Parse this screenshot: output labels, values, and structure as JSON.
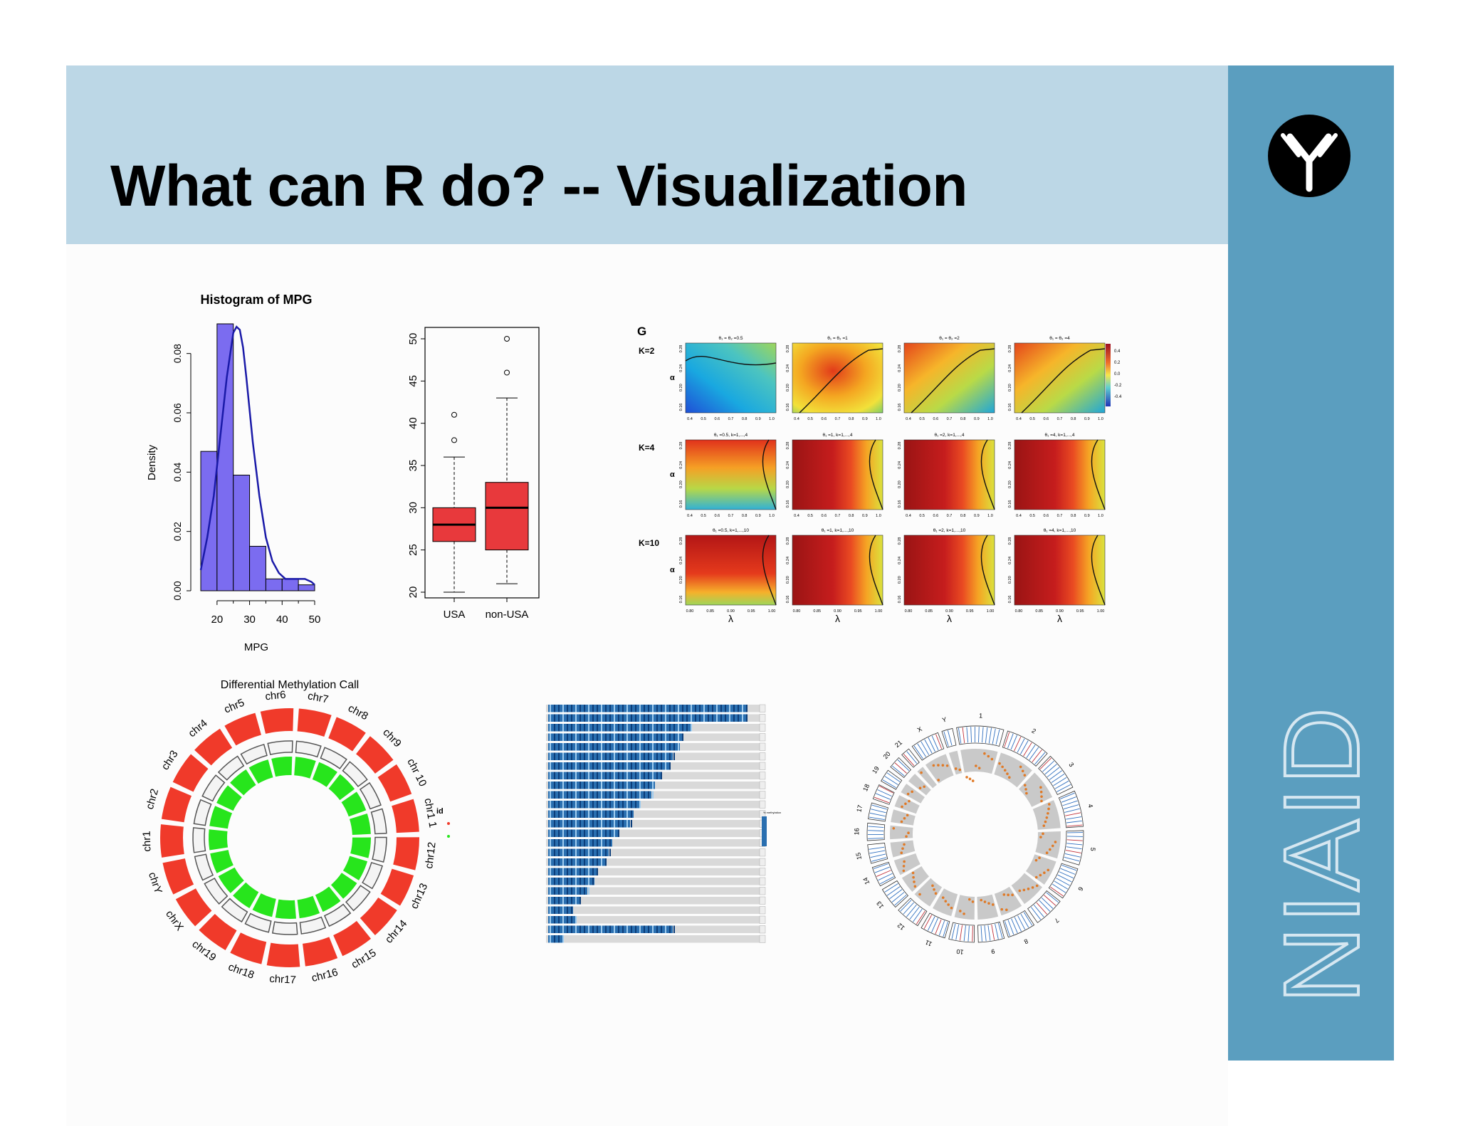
{
  "slide": {
    "title": "What can R do? -- Visualization",
    "brand": "NIAID",
    "colors": {
      "header": "#bcd7e6",
      "sidebar": "#5b9ebf",
      "histogram_fill": "#7b6cf0",
      "box_fill": "#e8393c",
      "methyl_outer": "#f03a2a",
      "methyl_inner": "#27e51c"
    }
  },
  "chart_data": [
    {
      "type": "bar",
      "title": "Histogram of MPG",
      "xlabel": "MPG",
      "ylabel": "Density",
      "xlim": [
        15,
        50
      ],
      "ylim": [
        0,
        0.09
      ],
      "x_ticks": [
        "20",
        "30",
        "40",
        "50"
      ],
      "y_ticks": [
        "0.00",
        "0.02",
        "0.04",
        "0.06",
        "0.08"
      ],
      "bins": [
        [
          15,
          20
        ],
        [
          20,
          25
        ],
        [
          25,
          30
        ],
        [
          30,
          35
        ],
        [
          35,
          40
        ],
        [
          40,
          45
        ],
        [
          45,
          50
        ]
      ],
      "values": [
        0.047,
        0.09,
        0.039,
        0.015,
        0.004,
        0.004,
        0.002
      ],
      "density_curve": {
        "x": [
          15,
          17,
          19,
          21,
          23,
          25,
          26,
          27,
          28,
          29,
          31,
          33,
          35,
          37,
          39,
          41,
          43,
          45,
          47,
          49,
          50
        ],
        "y": [
          0.007,
          0.018,
          0.032,
          0.052,
          0.072,
          0.087,
          0.089,
          0.088,
          0.082,
          0.072,
          0.05,
          0.032,
          0.018,
          0.01,
          0.006,
          0.004,
          0.004,
          0.004,
          0.004,
          0.003,
          0.002
        ]
      }
    },
    {
      "type": "box",
      "categories": [
        "USA",
        "non-USA"
      ],
      "ylim": [
        19,
        51
      ],
      "y_ticks": [
        "20",
        "25",
        "30",
        "35",
        "40",
        "45",
        "50"
      ],
      "boxes": [
        {
          "name": "USA",
          "min": 20,
          "q1": 26,
          "median": 28,
          "q3": 30,
          "max": 36,
          "outliers": [
            38,
            41
          ]
        },
        {
          "name": "non-USA",
          "min": 21,
          "q1": 25,
          "median": 30,
          "q3": 33,
          "max": 43,
          "outliers": [
            46,
            50
          ]
        }
      ]
    },
    {
      "type": "heatmap",
      "panel_label": "G",
      "row_labels": [
        "K=2",
        "K=4",
        "K=10"
      ],
      "col_titles": [
        [
          "θ₁ = θ₂ =0.5",
          "θ₁ = θ₂ =1",
          "θ₁ = θ₂ =2",
          "θ₁ = θ₂ =4"
        ],
        [
          "θ₁ =0.5, k=1,...,4",
          "θ₁ =1, k=1,...,4",
          "θ₁ =2, k=1,...,4",
          "θ₁ =4, k=1,...,4"
        ],
        [
          "θ₁ =0.5, k=1,...,10",
          "θ₁ =1, k=1,...,10",
          "θ₁ =2, k=1,...,10",
          "θ₁ =4, k=1,...,10"
        ]
      ],
      "ylabel": "α",
      "xlabel": "λ",
      "colorbar_ticks": [
        "0.4",
        "0.2",
        "0.0",
        "-0.2",
        "-0.4"
      ]
    },
    {
      "type": "circular",
      "title": "Differential Methylation Call",
      "legend_title": "id",
      "chromosomes": [
        "chr1",
        "chr2",
        "chr3",
        "chr4",
        "chr5",
        "chr6",
        "chr7",
        "chr8",
        "chr9",
        "chr 10",
        "chr1 1",
        "chr12",
        "chr13",
        "chr14",
        "chr15",
        "chr16",
        "chr17",
        "chr18",
        "chr19",
        "chrX",
        "chrY"
      ]
    },
    {
      "type": "heatmap",
      "subtype": "stacked-bars",
      "legend_title": "% methylation"
    },
    {
      "type": "circular",
      "subtype": "circos",
      "labels": [
        "1",
        "2",
        "3",
        "4",
        "5",
        "6",
        "7",
        "8",
        "9",
        "10",
        "11",
        "12",
        "13",
        "14",
        "15",
        "16",
        "17",
        "18",
        "19",
        "20",
        "21",
        "X",
        "Y"
      ]
    }
  ]
}
